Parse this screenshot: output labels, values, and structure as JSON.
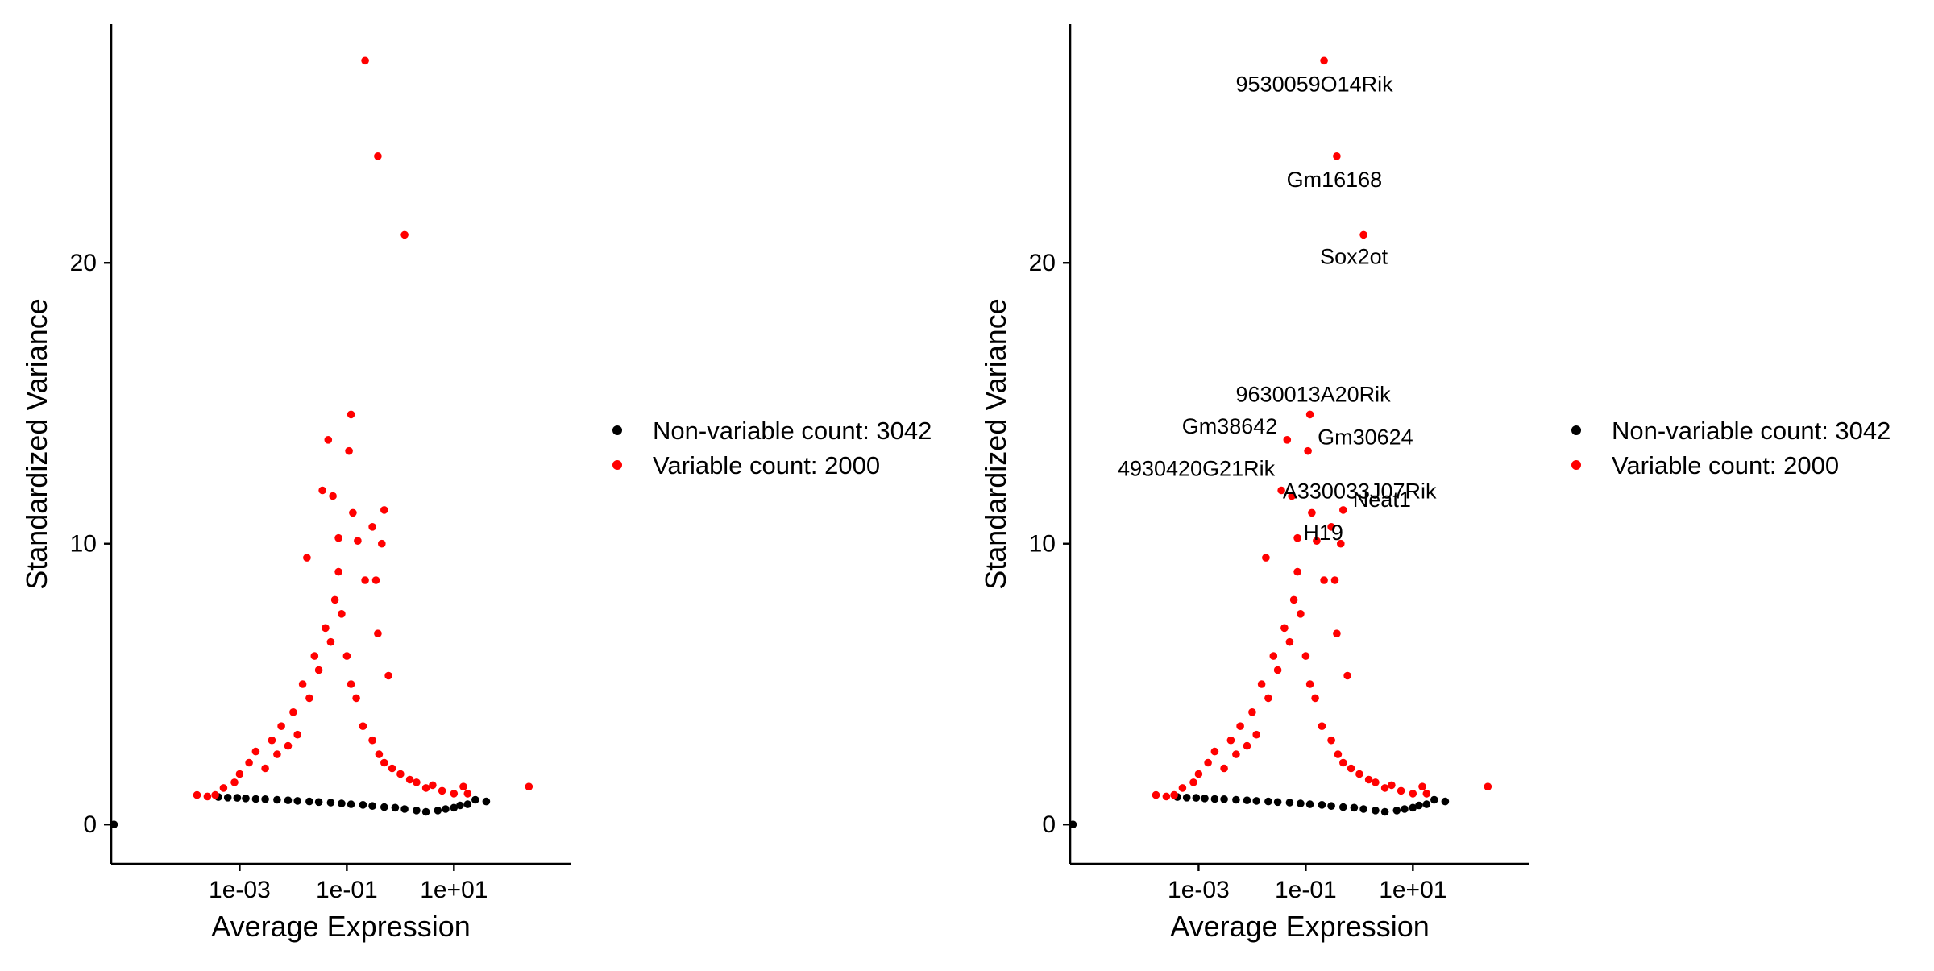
{
  "chart_data": [
    {
      "type": "scatter",
      "xlabel": "Average Expression",
      "ylabel": "Standardized Variance",
      "x_scale": "log10",
      "xlim": [
        4e-06,
        1500
      ],
      "ylim": [
        -1.4,
        28.5
      ],
      "x_ticks": [
        {
          "value": 0.001,
          "label": "1e-03"
        },
        {
          "value": 0.1,
          "label": "1e-01"
        },
        {
          "value": 10,
          "label": "1e+01"
        }
      ],
      "y_ticks": [
        {
          "value": 0,
          "label": "0"
        },
        {
          "value": 10,
          "label": "10"
        },
        {
          "value": 20,
          "label": "20"
        }
      ],
      "grid": false,
      "legend_position": "right",
      "series": [
        {
          "name": "Non-variable count: 3042",
          "color": "#000000",
          "points": [
            [
              4.5e-06,
              0
            ],
            [
              0.0004,
              0.98
            ],
            [
              0.0006,
              0.96
            ],
            [
              0.0009,
              0.95
            ],
            [
              0.0013,
              0.93
            ],
            [
              0.002,
              0.91
            ],
            [
              0.003,
              0.9
            ],
            [
              0.005,
              0.88
            ],
            [
              0.008,
              0.86
            ],
            [
              0.012,
              0.84
            ],
            [
              0.02,
              0.82
            ],
            [
              0.03,
              0.8
            ],
            [
              0.05,
              0.78
            ],
            [
              0.08,
              0.75
            ],
            [
              0.12,
              0.72
            ],
            [
              0.2,
              0.7
            ],
            [
              0.3,
              0.66
            ],
            [
              0.5,
              0.62
            ],
            [
              0.8,
              0.6
            ],
            [
              1.2,
              0.55
            ],
            [
              2,
              0.5
            ],
            [
              3,
              0.45
            ],
            [
              5,
              0.5
            ],
            [
              7,
              0.55
            ],
            [
              10,
              0.6
            ],
            [
              13,
              0.68
            ],
            [
              18,
              0.72
            ],
            [
              25,
              0.88
            ],
            [
              40,
              0.82
            ]
          ]
        },
        {
          "name": "Variable count: 2000",
          "color": "#ff0000",
          "points": [
            [
              0.00016,
              1.05
            ],
            [
              0.00025,
              1.0
            ],
            [
              0.00035,
              1.05
            ],
            [
              0.0005,
              1.3
            ],
            [
              0.0008,
              1.5
            ],
            [
              0.001,
              1.8
            ],
            [
              0.0015,
              2.2
            ],
            [
              0.002,
              2.6
            ],
            [
              0.003,
              2.0
            ],
            [
              0.004,
              3.0
            ],
            [
              0.005,
              2.5
            ],
            [
              0.006,
              3.5
            ],
            [
              0.008,
              2.8
            ],
            [
              0.01,
              4.0
            ],
            [
              0.012,
              3.2
            ],
            [
              0.015,
              5.0
            ],
            [
              0.02,
              4.5
            ],
            [
              0.025,
              6.0
            ],
            [
              0.03,
              5.5
            ],
            [
              0.04,
              7.0
            ],
            [
              0.05,
              6.5
            ],
            [
              0.06,
              8.0
            ],
            [
              0.07,
              9.0
            ],
            [
              0.08,
              7.5
            ],
            [
              0.1,
              6.0
            ],
            [
              0.12,
              5.0
            ],
            [
              0.15,
              4.5
            ],
            [
              0.2,
              3.5
            ],
            [
              0.3,
              3.0
            ],
            [
              0.4,
              2.5
            ],
            [
              0.5,
              2.2
            ],
            [
              0.7,
              2.0
            ],
            [
              1.0,
              1.8
            ],
            [
              1.5,
              1.6
            ],
            [
              2,
              1.5
            ],
            [
              3,
              1.3
            ],
            [
              4,
              1.4
            ],
            [
              6,
              1.2
            ],
            [
              10,
              1.1
            ],
            [
              15,
              1.35
            ],
            [
              18,
              1.1
            ],
            [
              250,
              1.35
            ],
            [
              0.018,
              9.5
            ],
            [
              0.035,
              11.9
            ],
            [
              0.045,
              13.7
            ],
            [
              0.055,
              11.7
            ],
            [
              0.07,
              10.2
            ],
            [
              0.12,
              14.6
            ],
            [
              0.11,
              13.3
            ],
            [
              0.13,
              11.1
            ],
            [
              0.16,
              10.1
            ],
            [
              0.22,
              8.7
            ],
            [
              0.3,
              10.6
            ],
            [
              0.38,
              6.8
            ],
            [
              0.45,
              10.0
            ],
            [
              0.5,
              11.2
            ],
            [
              0.35,
              8.7
            ],
            [
              0.6,
              5.3
            ],
            [
              0.22,
              27.2
            ],
            [
              0.38,
              23.8
            ],
            [
              1.2,
              21.0
            ]
          ]
        }
      ],
      "annotations": []
    },
    {
      "type": "scatter",
      "xlabel": "Average Expression",
      "ylabel": "Standardized Variance",
      "x_scale": "log10",
      "xlim": [
        4e-06,
        1500
      ],
      "ylim": [
        -1.4,
        28.5
      ],
      "x_ticks": [
        {
          "value": 0.001,
          "label": "1e-03"
        },
        {
          "value": 0.1,
          "label": "1e-01"
        },
        {
          "value": 10,
          "label": "1e+01"
        }
      ],
      "y_ticks": [
        {
          "value": 0,
          "label": "0"
        },
        {
          "value": 10,
          "label": "10"
        },
        {
          "value": 20,
          "label": "20"
        }
      ],
      "grid": false,
      "legend_position": "right",
      "series": [
        {
          "name": "Non-variable count: 3042",
          "color": "#000000",
          "points": [
            [
              4.5e-06,
              0
            ],
            [
              0.0004,
              0.98
            ],
            [
              0.0006,
              0.96
            ],
            [
              0.0009,
              0.95
            ],
            [
              0.0013,
              0.93
            ],
            [
              0.002,
              0.91
            ],
            [
              0.003,
              0.9
            ],
            [
              0.005,
              0.88
            ],
            [
              0.008,
              0.86
            ],
            [
              0.012,
              0.84
            ],
            [
              0.02,
              0.82
            ],
            [
              0.03,
              0.8
            ],
            [
              0.05,
              0.78
            ],
            [
              0.08,
              0.75
            ],
            [
              0.12,
              0.72
            ],
            [
              0.2,
              0.7
            ],
            [
              0.3,
              0.66
            ],
            [
              0.5,
              0.62
            ],
            [
              0.8,
              0.6
            ],
            [
              1.2,
              0.55
            ],
            [
              2,
              0.5
            ],
            [
              3,
              0.45
            ],
            [
              5,
              0.5
            ],
            [
              7,
              0.55
            ],
            [
              10,
              0.6
            ],
            [
              13,
              0.68
            ],
            [
              18,
              0.72
            ],
            [
              25,
              0.88
            ],
            [
              40,
              0.82
            ]
          ]
        },
        {
          "name": "Variable count: 2000",
          "color": "#ff0000",
          "points": [
            [
              0.00016,
              1.05
            ],
            [
              0.00025,
              1.0
            ],
            [
              0.00035,
              1.05
            ],
            [
              0.0005,
              1.3
            ],
            [
              0.0008,
              1.5
            ],
            [
              0.001,
              1.8
            ],
            [
              0.0015,
              2.2
            ],
            [
              0.002,
              2.6
            ],
            [
              0.003,
              2.0
            ],
            [
              0.004,
              3.0
            ],
            [
              0.005,
              2.5
            ],
            [
              0.006,
              3.5
            ],
            [
              0.008,
              2.8
            ],
            [
              0.01,
              4.0
            ],
            [
              0.012,
              3.2
            ],
            [
              0.015,
              5.0
            ],
            [
              0.02,
              4.5
            ],
            [
              0.025,
              6.0
            ],
            [
              0.03,
              5.5
            ],
            [
              0.04,
              7.0
            ],
            [
              0.05,
              6.5
            ],
            [
              0.06,
              8.0
            ],
            [
              0.07,
              9.0
            ],
            [
              0.08,
              7.5
            ],
            [
              0.1,
              6.0
            ],
            [
              0.12,
              5.0
            ],
            [
              0.15,
              4.5
            ],
            [
              0.2,
              3.5
            ],
            [
              0.3,
              3.0
            ],
            [
              0.4,
              2.5
            ],
            [
              0.5,
              2.2
            ],
            [
              0.7,
              2.0
            ],
            [
              1.0,
              1.8
            ],
            [
              1.5,
              1.6
            ],
            [
              2,
              1.5
            ],
            [
              3,
              1.3
            ],
            [
              4,
              1.4
            ],
            [
              6,
              1.2
            ],
            [
              10,
              1.1
            ],
            [
              15,
              1.35
            ],
            [
              18,
              1.1
            ],
            [
              250,
              1.35
            ],
            [
              0.018,
              9.5
            ],
            [
              0.035,
              11.9
            ],
            [
              0.045,
              13.7
            ],
            [
              0.055,
              11.7
            ],
            [
              0.07,
              10.2
            ],
            [
              0.12,
              14.6
            ],
            [
              0.11,
              13.3
            ],
            [
              0.13,
              11.1
            ],
            [
              0.16,
              10.1
            ],
            [
              0.22,
              8.7
            ],
            [
              0.3,
              10.6
            ],
            [
              0.38,
              6.8
            ],
            [
              0.45,
              10.0
            ],
            [
              0.5,
              11.2
            ],
            [
              0.35,
              8.7
            ],
            [
              0.6,
              5.3
            ],
            [
              0.22,
              27.2
            ],
            [
              0.38,
              23.8
            ],
            [
              1.2,
              21.0
            ]
          ]
        }
      ],
      "annotations": [
        {
          "label": "9530059O14Rik",
          "x": 0.22,
          "y": 27.2
        },
        {
          "label": "Gm16168",
          "x": 0.38,
          "y": 23.8
        },
        {
          "label": "Sox2ot",
          "x": 1.2,
          "y": 21.0
        },
        {
          "label": "9630013A20Rik",
          "x": 0.12,
          "y": 14.6
        },
        {
          "label": "Gm38642",
          "x": 0.045,
          "y": 13.7
        },
        {
          "label": "Gm30624",
          "x": 0.11,
          "y": 13.3
        },
        {
          "label": "4930420G21Rik",
          "x": 0.035,
          "y": 11.9
        },
        {
          "label": "A330033J07Rik",
          "x": 0.13,
          "y": 11.1
        },
        {
          "label": "Neat1",
          "x": 0.5,
          "y": 11.2
        },
        {
          "label": "H19",
          "x": 0.3,
          "y": 10.6
        }
      ]
    }
  ]
}
